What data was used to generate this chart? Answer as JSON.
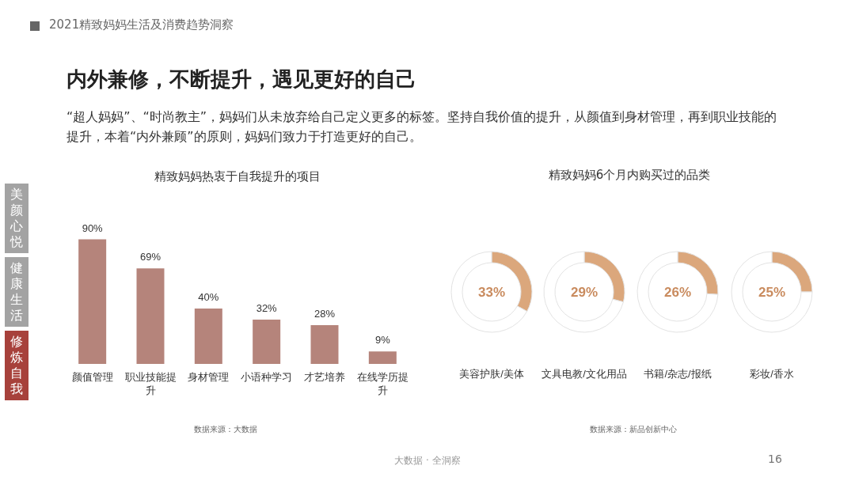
{
  "chart_data": [
    {
      "type": "bar",
      "title": "精致妈妈热衷于自我提升的项目",
      "categories": [
        "颜值管理",
        "职业技能提升",
        "身材管理",
        "小语种学习",
        "才艺培养",
        "在线学历提升"
      ],
      "values": [
        90,
        69,
        40,
        32,
        28,
        9
      ],
      "value_labels": [
        "90%",
        "69%",
        "40%",
        "32%",
        "28%",
        "9%"
      ],
      "color": "#b5847b",
      "annotations": [
        "2021精致妈妈生活及消费趋势洞察",
        "内外兼修，不断提升，遇见更好的自己",
        "“超人妈妈”、“时尚教主”，妈妈们从未放弃给自己定义更多的标签。坚持自我价值的提升，从颜值到身材管理，再到职业技能的提升，本着“内外兼顾”的原则，妈妈们致力于打造更好的自己。",
        "美颜心悦",
        "健康生活",
        "修炼自我",
        "数据来源：大数据",
        "大数据 · 全洞察",
        "16"
      ]
    },
    {
      "type": "donut",
      "title": "精致妈妈6个月内购买过的品类",
      "xlabel": "美容护肤/美体",
      "categories": [
        null,
        null
      ],
      "values": [
        33,
        67
      ],
      "colors": [
        "#dba77c",
        "#ffffff"
      ],
      "value_labels": [
        "33%",
        null
      ],
      "annotations": [
        "数据来源：新品创新中心"
      ]
    },
    {
      "type": "donut",
      "xlabel": "文具电教/文化用品",
      "categories": [
        null,
        null
      ],
      "values": [
        29,
        71
      ],
      "colors": [
        "#dba77c",
        "#ffffff"
      ],
      "value_labels": [
        "29%",
        null
      ]
    },
    {
      "type": "donut",
      "xlabel": "书籍/杂志/报纸",
      "categories": [
        null,
        null
      ],
      "values": [
        26,
        74
      ],
      "colors": [
        "#dba77c",
        "#ffffff"
      ],
      "value_labels": [
        "26%",
        null
      ]
    },
    {
      "type": "donut",
      "xlabel": "彩妆/香水",
      "categories": [
        null,
        null
      ],
      "values": [
        25,
        75
      ],
      "colors": [
        "#dba77c",
        "#ffffff"
      ],
      "value_labels": [
        "25%",
        null
      ]
    }
  ]
}
